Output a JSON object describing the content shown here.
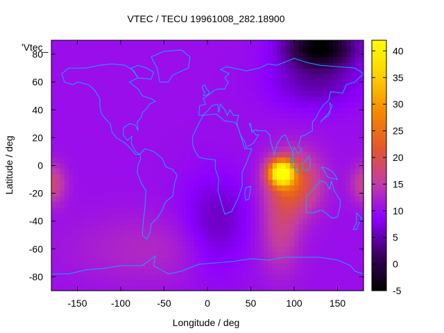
{
  "chart_data": {
    "type": "heatmap",
    "title": "VTEC / TECU 19961008_282.18900",
    "xlabel": "Longitude / deg",
    "ylabel": "Latitude / deg",
    "xlim": [
      -180,
      180
    ],
    "ylim": [
      -90,
      90
    ],
    "x_ticks": [
      -150,
      -100,
      -50,
      0,
      50,
      100,
      150
    ],
    "y_ticks": [
      -80,
      -60,
      -40,
      -20,
      0,
      20,
      40,
      60,
      80
    ],
    "colorbar": {
      "range": [
        -5,
        42
      ],
      "ticks": [
        -5,
        0,
        5,
        10,
        15,
        20,
        25,
        30,
        35,
        40
      ],
      "palette": [
        "#000000",
        "#3a005e",
        "#8c00ff",
        "#c23ca6",
        "#e2582c",
        "#f58a00",
        "#fed000",
        "#ffff00"
      ]
    },
    "series_label": "'Vtec_",
    "coastline_color": "#1aa3ff",
    "legend": "top-left",
    "grid": false,
    "features": [
      {
        "name": "equatorial-anomaly peak",
        "lon": 85,
        "lat": -5,
        "value": 42
      },
      {
        "name": "polar minimum",
        "lon": 130,
        "lat": 85,
        "value": -5
      },
      {
        "name": "pacific crest",
        "lon": -180,
        "lat": -15,
        "value": 20
      },
      {
        "name": "asia-pacific crest",
        "lon": 175,
        "lat": -15,
        "value": 18
      },
      {
        "name": "background",
        "value": 10
      }
    ]
  }
}
